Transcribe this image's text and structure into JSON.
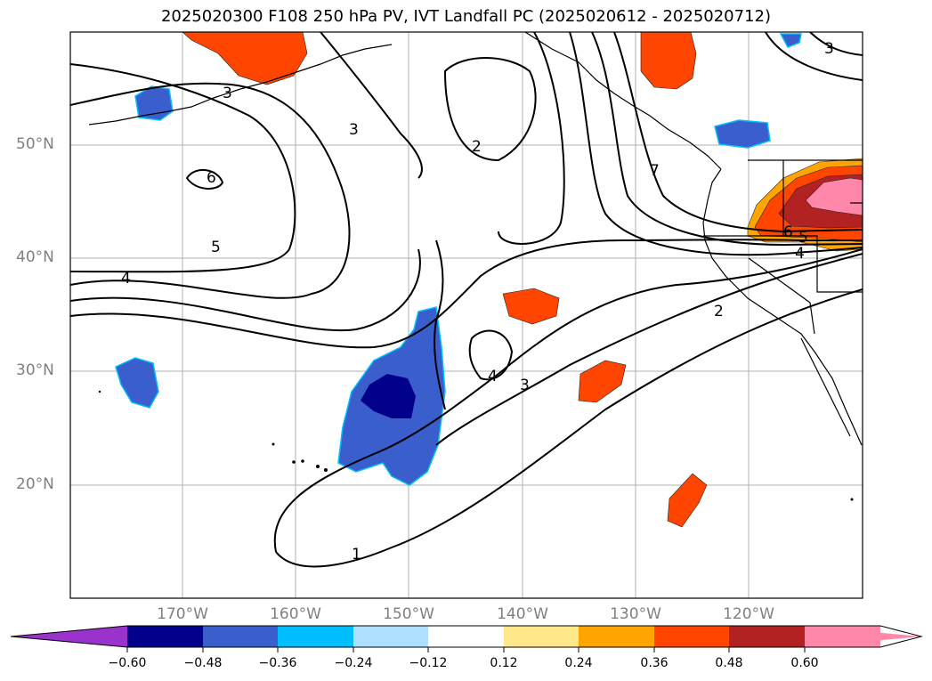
{
  "title": "2025020300 F108 250 hPa PV, IVT Landfall PC (2025020612 - 2025020712)",
  "axes": {
    "lat_ticks": [
      "50°N",
      "40°N",
      "30°N",
      "20°N"
    ],
    "lon_ticks": [
      "170°W",
      "160°W",
      "150°W",
      "140°W",
      "130°W",
      "120°W"
    ]
  },
  "contour_labels": [
    "3",
    "3",
    "2",
    "6",
    "5",
    "4",
    "7",
    "6",
    "5",
    "4",
    "2",
    "4",
    "3",
    "1",
    "3"
  ],
  "colorbar": {
    "ticks": [
      "−0.60",
      "−0.48",
      "−0.36",
      "−0.24",
      "−0.12",
      "0.12",
      "0.24",
      "0.36",
      "0.48",
      "0.60"
    ],
    "colors": [
      "#9933cc",
      "#00008b",
      "#3a5fcd",
      "#00bfff",
      "#b0e0ff",
      "#ffffff",
      "#ffe88a",
      "#ffa500",
      "#ff4500",
      "#b22222",
      "#ff88aa",
      "#ff88aa"
    ]
  }
}
